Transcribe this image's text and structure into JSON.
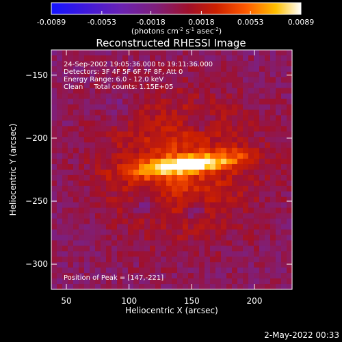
{
  "chart_data": {
    "type": "heatmap",
    "title": "Reconstructed RHESSI Image",
    "xlabel": "Heliocentric X (arcsec)",
    "ylabel": "Heliocentric Y (arcsec)",
    "xlim": [
      38,
      230
    ],
    "ylim": [
      -320,
      -130
    ],
    "xticks": [
      50,
      100,
      150,
      200
    ],
    "yticks": [
      -150,
      -200,
      -250,
      -300
    ],
    "colorbar": {
      "range": [
        -0.0089,
        0.0089
      ],
      "ticks": [
        "-0.0089",
        "-0.0053",
        "-0.0018",
        "0.0018",
        "0.0053",
        "0.0089"
      ],
      "unit_parts": [
        "(photons cm",
        "-2",
        " s",
        "-1",
        " asec",
        "-2",
        ")"
      ],
      "colormap_stops": [
        [
          0.0,
          "#1414ff"
        ],
        [
          0.12,
          "#3a18e0"
        ],
        [
          0.28,
          "#6a22b2"
        ],
        [
          0.42,
          "#7f1f7a"
        ],
        [
          0.55,
          "#a0102a"
        ],
        [
          0.66,
          "#cc2000"
        ],
        [
          0.78,
          "#ff5a00"
        ],
        [
          0.9,
          "#ffc000"
        ],
        [
          1.0,
          "#ffffff"
        ]
      ]
    },
    "annotations": [
      "24-Sep-2002 19:05:36.000 to 19:11:36.000",
      "Detectors: 3F 4F 5F 6F 7F 8F, Att 0",
      "Energy Range: 6.0 - 12.0 keV",
      "Clean     Total counts: 1.15E+05"
    ],
    "peak_label": "Position of Peak = [147,-221]",
    "peak": [
      147,
      -221
    ],
    "grid": false,
    "legend": "none"
  },
  "footer": {
    "timestamp": "2-May-2022 00:33"
  }
}
